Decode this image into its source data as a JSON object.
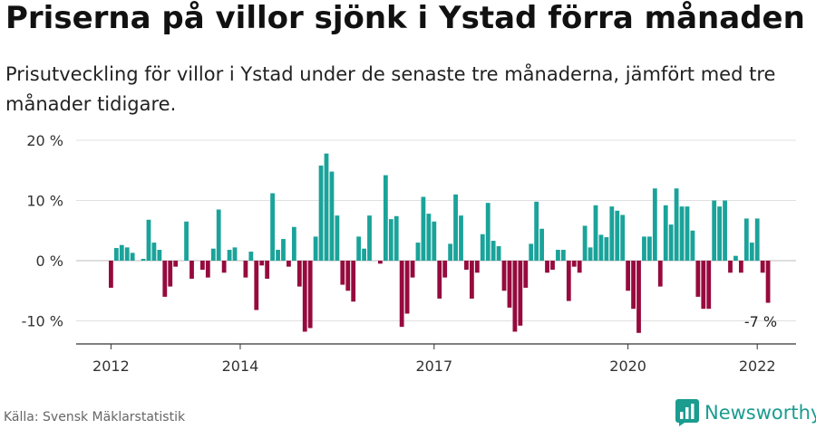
{
  "title": "Priserna på villor sjönk i Ystad förra månaden",
  "subtitle": "Prisutveckling för villor i Ystad under de senaste tre månaderna, jämfört med tre månader tidigare.",
  "source": "Källa: Svensk Mäklarstatistik",
  "brand": "Newsworthy",
  "colors": {
    "positive": "#1aa39a",
    "negative": "#960a3e",
    "brand": "#1a9c8f"
  },
  "chart_data": {
    "type": "bar",
    "unit": "%",
    "ylim": [
      -14,
      20
    ],
    "yticks": [
      20,
      10,
      0,
      -10
    ],
    "ytick_labels": [
      "20 %",
      "10 %",
      "0 %",
      "-10 %"
    ],
    "xticks": [
      "2012",
      "2014",
      "2017",
      "2020",
      "2022"
    ],
    "grid": true,
    "annotation": "-7 %",
    "values": [
      -4.5,
      2.1,
      2.6,
      2.2,
      1.3,
      0.0,
      0.3,
      6.8,
      3.0,
      1.8,
      -6.0,
      -4.3,
      -1.0,
      0.0,
      6.5,
      -3.0,
      0.0,
      -1.5,
      -2.8,
      2.0,
      8.5,
      -2.0,
      1.8,
      2.2,
      0.0,
      -2.8,
      1.5,
      -8.2,
      -0.8,
      -3.0,
      11.2,
      1.8,
      3.6,
      -1.0,
      5.6,
      -4.3,
      -11.8,
      -11.2,
      4.0,
      15.8,
      17.8,
      14.8,
      7.5,
      -4.0,
      -5.0,
      -6.8,
      4.0,
      2.0,
      7.5,
      0.0,
      -0.5,
      14.2,
      6.9,
      7.4,
      -11.0,
      -8.8,
      -2.8,
      3.0,
      10.6,
      7.8,
      6.5,
      -6.3,
      -2.8,
      2.8,
      11.0,
      7.5,
      -1.5,
      -6.3,
      -2.0,
      4.4,
      9.6,
      3.3,
      2.4,
      -5.0,
      -7.8,
      -11.8,
      -10.8,
      -4.5,
      2.8,
      9.8,
      5.3,
      -2.0,
      -1.5,
      1.8,
      1.8,
      -6.7,
      -1.0,
      -2.0,
      5.8,
      2.2,
      9.2,
      4.3,
      3.9,
      9.0,
      8.3,
      7.6,
      -5.0,
      -8.0,
      -12.0,
      4.0,
      4.0,
      12.0,
      -4.3,
      9.2,
      6.0,
      12.0,
      9.0,
      9.0,
      5.0,
      -6.0,
      -8.0,
      -8.0,
      10.0,
      9.0,
      10.0,
      -2.0,
      0.8,
      -2.0,
      7.0,
      3.0,
      7.0,
      -2.0,
      -7.0
    ]
  }
}
